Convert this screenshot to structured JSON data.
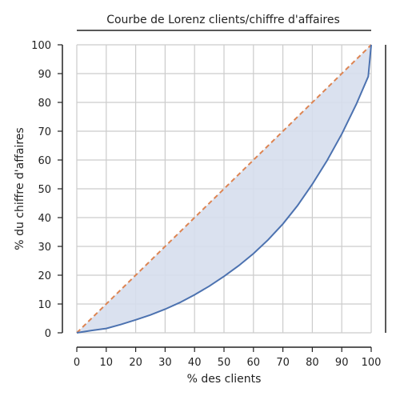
{
  "chart_data": {
    "type": "area",
    "title": "Courbe de Lorenz clients/chiffre d'affaires",
    "xlabel": "% des clients",
    "ylabel": "% du chiffre d'affaires",
    "xlim": [
      0,
      100
    ],
    "ylim": [
      0,
      100
    ],
    "xticks": [
      "0",
      "10",
      "20",
      "30",
      "40",
      "50",
      "60",
      "70",
      "80",
      "90",
      "100"
    ],
    "yticks": [
      "0",
      "10",
      "20",
      "30",
      "40",
      "50",
      "60",
      "70",
      "80",
      "90",
      "100"
    ],
    "grid": true,
    "series": [
      {
        "x": [
          0,
          5,
          10,
          15,
          20,
          25,
          30,
          35,
          40,
          45,
          50,
          55,
          60,
          65,
          70,
          75,
          80,
          85,
          90,
          95,
          99,
          100
        ],
        "y": [
          0,
          0.8,
          1.5,
          2.9,
          4.5,
          6.2,
          8.2,
          10.5,
          13.2,
          16.2,
          19.6,
          23.3,
          27.5,
          32.3,
          37.8,
          44.2,
          51.6,
          59.8,
          69.0,
          79.5,
          89.0,
          100
        ],
        "color": "#4c72b0",
        "fill": "#d6deed"
      },
      {
        "x": [
          0,
          100
        ],
        "y": [
          0,
          100
        ],
        "color": "#dd8452",
        "dashed": true
      }
    ]
  }
}
